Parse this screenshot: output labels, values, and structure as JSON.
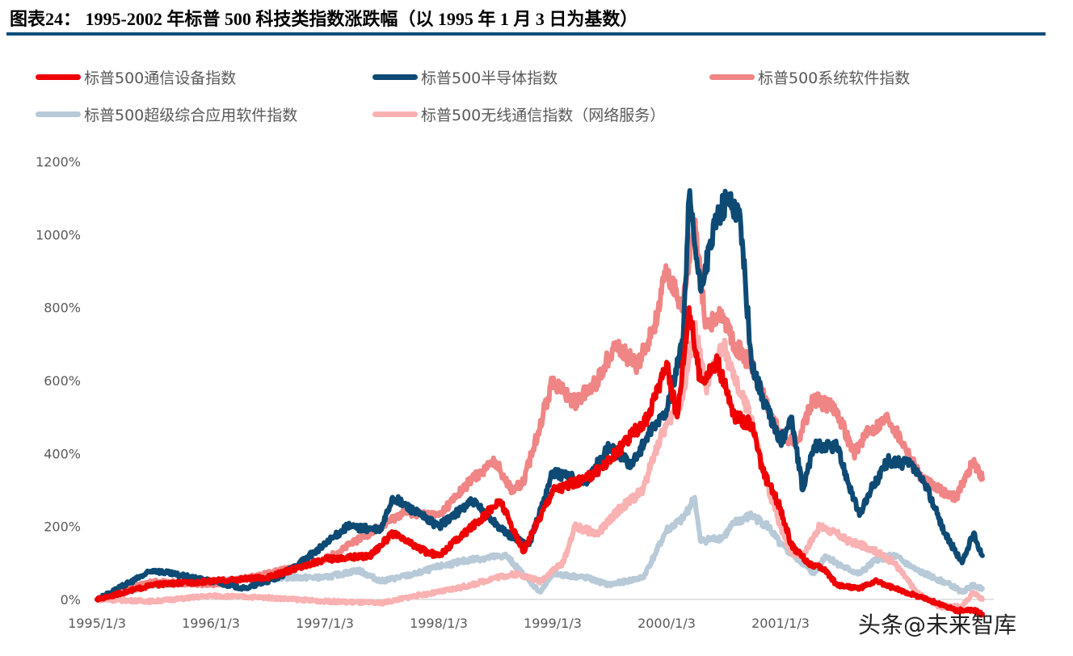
{
  "title": "图表24：   1995-2002 年标普 500 科技类指数涨跌幅（以 1995 年 1 月 3 日为基数）",
  "watermark": "头条@未来智库",
  "chart_data": {
    "type": "line",
    "title": "",
    "xlabel": "",
    "ylabel": "",
    "ylim": [
      0,
      1200
    ],
    "y_ticks": [
      "0%",
      "200%",
      "400%",
      "600%",
      "800%",
      "1000%",
      "1200%"
    ],
    "y_tick_values": [
      0,
      200,
      400,
      600,
      800,
      1000,
      1200
    ],
    "x_ticks": [
      "1995/1/3",
      "1996/1/3",
      "1997/1/3",
      "1998/1/3",
      "1999/1/3",
      "2000/1/3",
      "2001/1/3"
    ],
    "grid": "zero line only",
    "legend_position": "top",
    "series": [
      {
        "name": "标普500超级综合应用软件指数",
        "color": "#b8cad8",
        "points": [
          [
            "1995-01-03",
            0
          ],
          [
            "1995-07-02",
            40
          ],
          [
            "1996-01-03",
            50
          ],
          [
            "1996-07-02",
            60
          ],
          [
            "1997-01-03",
            60
          ],
          [
            "1997-04-20",
            80
          ],
          [
            "1997-07-02",
            50
          ],
          [
            "1997-10-20",
            70
          ],
          [
            "1998-01-03",
            90
          ],
          [
            "1998-04-20",
            110
          ],
          [
            "1998-08-08",
            120
          ],
          [
            "1998-10-20",
            50
          ],
          [
            "1998-11-25",
            20
          ],
          [
            "1999-01-03",
            70
          ],
          [
            "1999-04-20",
            60
          ],
          [
            "1999-07-02",
            40
          ],
          [
            "1999-10-20",
            60
          ],
          [
            "1999-11-25",
            120
          ],
          [
            "2000-01-03",
            190
          ],
          [
            "2000-02-24",
            220
          ],
          [
            "2000-04-02",
            280
          ],
          [
            "2000-04-20",
            160
          ],
          [
            "2000-07-02",
            170
          ],
          [
            "2000-08-08",
            210
          ],
          [
            "2000-10-01",
            230
          ],
          [
            "2000-11-25",
            200
          ],
          [
            "2001-01-03",
            150
          ],
          [
            "2001-03-15",
            100
          ],
          [
            "2001-04-20",
            70
          ],
          [
            "2001-05-27",
            120
          ],
          [
            "2001-07-20",
            90
          ],
          [
            "2001-09-13",
            70
          ],
          [
            "2001-11-07",
            110
          ],
          [
            "2002-01-03",
            120
          ],
          [
            "2002-03-15",
            80
          ],
          [
            "2002-07-02",
            40
          ],
          [
            "2002-08-08",
            20
          ],
          [
            "2002-09-13",
            40
          ],
          [
            "2002-10-12",
            30
          ]
        ]
      },
      {
        "name": "标普500无线通信指数（网络服务）",
        "color": "#f9b1b1",
        "points": [
          [
            "1995-01-03",
            0
          ],
          [
            "1995-07-02",
            -5
          ],
          [
            "1996-01-03",
            10
          ],
          [
            "1996-07-02",
            5
          ],
          [
            "1997-01-03",
            -5
          ],
          [
            "1997-07-02",
            -10
          ],
          [
            "1997-10-20",
            10
          ],
          [
            "1998-01-03",
            20
          ],
          [
            "1998-04-20",
            40
          ],
          [
            "1998-07-02",
            60
          ],
          [
            "1998-09-13",
            70
          ],
          [
            "1998-11-25",
            50
          ],
          [
            "1999-01-03",
            80
          ],
          [
            "1999-02-06",
            100
          ],
          [
            "1999-03-15",
            200
          ],
          [
            "1999-05-27",
            180
          ],
          [
            "1999-08-08",
            250
          ],
          [
            "1999-10-20",
            300
          ],
          [
            "1999-11-25",
            400
          ],
          [
            "2000-01-03",
            480
          ],
          [
            "2000-02-24",
            550
          ],
          [
            "2000-04-02",
            750
          ],
          [
            "2000-05-08",
            580
          ],
          [
            "2000-07-02",
            700
          ],
          [
            "2000-08-08",
            600
          ],
          [
            "2000-10-01",
            500
          ],
          [
            "2000-11-07",
            350
          ],
          [
            "2001-01-03",
            200
          ],
          [
            "2001-02-06",
            130
          ],
          [
            "2001-03-15",
            120
          ],
          [
            "2001-05-08",
            200
          ],
          [
            "2001-07-02",
            180
          ],
          [
            "2001-08-08",
            160
          ],
          [
            "2001-10-20",
            140
          ],
          [
            "2002-01-03",
            100
          ],
          [
            "2002-03-15",
            20
          ],
          [
            "2002-05-27",
            -20
          ],
          [
            "2002-08-08",
            -20
          ],
          [
            "2002-09-13",
            20
          ],
          [
            "2002-10-12",
            0
          ]
        ]
      },
      {
        "name": "标普500系统软件指数",
        "color": "#f08585",
        "points": [
          [
            "1995-01-03",
            0
          ],
          [
            "1995-07-02",
            50
          ],
          [
            "1996-01-03",
            40
          ],
          [
            "1996-07-02",
            70
          ],
          [
            "1997-01-03",
            110
          ],
          [
            "1997-07-02",
            200
          ],
          [
            "1997-09-13",
            240
          ],
          [
            "1998-01-03",
            230
          ],
          [
            "1998-04-20",
            330
          ],
          [
            "1998-07-02",
            380
          ],
          [
            "1998-08-26",
            300
          ],
          [
            "1998-10-01",
            320
          ],
          [
            "1999-01-03",
            600
          ],
          [
            "1999-03-15",
            540
          ],
          [
            "1999-05-27",
            600
          ],
          [
            "1999-07-20",
            700
          ],
          [
            "1999-10-01",
            640
          ],
          [
            "1999-11-25",
            750
          ],
          [
            "2000-01-03",
            900
          ],
          [
            "2000-02-24",
            800
          ],
          [
            "2000-04-02",
            1030
          ],
          [
            "2000-05-08",
            750
          ],
          [
            "2000-07-02",
            780
          ],
          [
            "2000-08-08",
            700
          ],
          [
            "2000-10-01",
            640
          ],
          [
            "2000-11-25",
            520
          ],
          [
            "2001-01-03",
            450
          ],
          [
            "2001-02-24",
            430
          ],
          [
            "2001-04-20",
            550
          ],
          [
            "2001-07-02",
            520
          ],
          [
            "2001-08-26",
            400
          ],
          [
            "2001-10-01",
            450
          ],
          [
            "2001-12-13",
            500
          ],
          [
            "2002-02-06",
            420
          ],
          [
            "2002-04-02",
            330
          ],
          [
            "2002-05-27",
            300
          ],
          [
            "2002-07-20",
            280
          ],
          [
            "2002-09-13",
            380
          ],
          [
            "2002-10-12",
            330
          ]
        ]
      },
      {
        "name": "标普500半导体指数",
        "color": "#0d4a74",
        "points": [
          [
            "1995-01-03",
            0
          ],
          [
            "1995-07-02",
            80
          ],
          [
            "1996-01-03",
            50
          ],
          [
            "1996-04-20",
            30
          ],
          [
            "1996-08-08",
            60
          ],
          [
            "1997-01-03",
            150
          ],
          [
            "1997-03-15",
            200
          ],
          [
            "1997-07-02",
            190
          ],
          [
            "1997-08-08",
            280
          ],
          [
            "1998-01-03",
            200
          ],
          [
            "1998-04-20",
            270
          ],
          [
            "1998-08-08",
            180
          ],
          [
            "1998-10-20",
            150
          ],
          [
            "1999-01-03",
            350
          ],
          [
            "1999-04-20",
            320
          ],
          [
            "1999-07-02",
            420
          ],
          [
            "1999-09-13",
            370
          ],
          [
            "1999-11-07",
            450
          ],
          [
            "2000-01-03",
            520
          ],
          [
            "2000-02-24",
            700
          ],
          [
            "2000-03-15",
            1100
          ],
          [
            "2000-04-20",
            850
          ],
          [
            "2000-06-14",
            1050
          ],
          [
            "2000-07-20",
            1100
          ],
          [
            "2000-08-26",
            1050
          ],
          [
            "2000-10-01",
            650
          ],
          [
            "2000-11-07",
            550
          ],
          [
            "2001-01-03",
            430
          ],
          [
            "2001-02-06",
            500
          ],
          [
            "2001-03-15",
            300
          ],
          [
            "2001-04-20",
            420
          ],
          [
            "2001-07-02",
            420
          ],
          [
            "2001-09-13",
            230
          ],
          [
            "2001-10-20",
            300
          ],
          [
            "2001-12-13",
            380
          ],
          [
            "2002-02-24",
            370
          ],
          [
            "2002-04-20",
            300
          ],
          [
            "2002-06-14",
            180
          ],
          [
            "2002-08-08",
            100
          ],
          [
            "2002-09-13",
            180
          ],
          [
            "2002-10-12",
            120
          ]
        ]
      },
      {
        "name": "标普500通信设备指数",
        "color": "#ee0000",
        "points": [
          [
            "1995-01-03",
            0
          ],
          [
            "1995-07-02",
            40
          ],
          [
            "1996-01-03",
            50
          ],
          [
            "1996-07-02",
            60
          ],
          [
            "1997-01-03",
            110
          ],
          [
            "1997-05-27",
            120
          ],
          [
            "1997-08-08",
            180
          ],
          [
            "1997-11-25",
            130
          ],
          [
            "1998-01-03",
            120
          ],
          [
            "1998-04-20",
            200
          ],
          [
            "1998-07-20",
            270
          ],
          [
            "1998-10-01",
            130
          ],
          [
            "1999-01-03",
            300
          ],
          [
            "1999-04-20",
            330
          ],
          [
            "1999-07-02",
            380
          ],
          [
            "1999-09-13",
            450
          ],
          [
            "1999-11-07",
            500
          ],
          [
            "2000-01-03",
            650
          ],
          [
            "2000-02-06",
            500
          ],
          [
            "2000-03-15",
            800
          ],
          [
            "2000-04-20",
            600
          ],
          [
            "2000-06-14",
            650
          ],
          [
            "2000-08-08",
            500
          ],
          [
            "2000-10-01",
            480
          ],
          [
            "2000-11-07",
            350
          ],
          [
            "2001-01-03",
            250
          ],
          [
            "2001-02-06",
            150
          ],
          [
            "2001-04-02",
            100
          ],
          [
            "2001-05-27",
            80
          ],
          [
            "2001-07-02",
            40
          ],
          [
            "2001-09-13",
            30
          ],
          [
            "2001-11-07",
            50
          ],
          [
            "2002-01-03",
            30
          ],
          [
            "2002-04-20",
            0
          ],
          [
            "2002-07-20",
            -30
          ],
          [
            "2002-09-13",
            -30
          ],
          [
            "2002-10-12",
            -40
          ]
        ]
      }
    ],
    "legend_order": [
      4,
      3,
      2,
      0,
      1
    ]
  }
}
